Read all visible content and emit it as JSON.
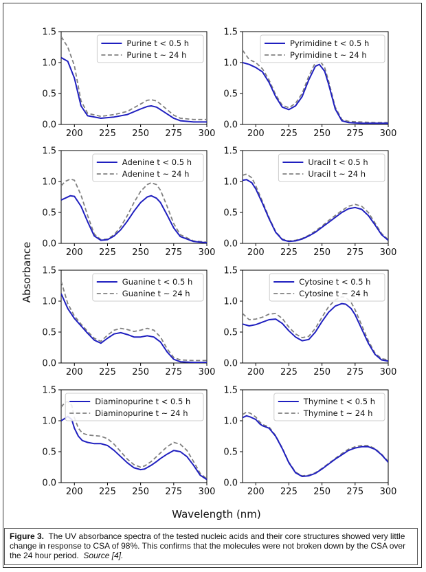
{
  "figure": {
    "ylabel": "Absorbance",
    "xlabel": "Wavelength (nm)",
    "caption": {
      "label": "Figure 3.",
      "text": "The UV absorbance spectra of the tested nucleic acids and their core structures showed very little change in response to CSA of 98%.  This confirms that the molecules were not broken down by the CSA over the 24 hour period.",
      "source": "Source [4]."
    }
  },
  "colors": {
    "short": "#1f1fbf",
    "long": "#808080"
  },
  "chart_data": [
    {
      "type": "line",
      "xlim": [
        190,
        300
      ],
      "ylim": [
        0,
        1.5
      ],
      "xticks": [
        "200",
        "225",
        "250",
        "275",
        "300"
      ],
      "yticks": [
        "0.0",
        "0.5",
        "1.0",
        "1.5"
      ],
      "legend_position": "top-right",
      "series": [
        {
          "name": "Purine t < 0.5 h",
          "style": "solid",
          "x": [
            190,
            195,
            200,
            205,
            210,
            220,
            230,
            240,
            250,
            255,
            258,
            262,
            265,
            270,
            275,
            280,
            290,
            300
          ],
          "y": [
            1.08,
            1.02,
            0.75,
            0.3,
            0.14,
            0.1,
            0.12,
            0.16,
            0.25,
            0.29,
            0.3,
            0.28,
            0.24,
            0.17,
            0.1,
            0.06,
            0.04,
            0.04
          ]
        },
        {
          "name": "Purine t ~ 24 h",
          "style": "dashed",
          "x": [
            190,
            195,
            200,
            205,
            210,
            220,
            230,
            240,
            250,
            255,
            258,
            262,
            265,
            270,
            275,
            280,
            290,
            300
          ],
          "y": [
            1.42,
            1.25,
            0.95,
            0.38,
            0.18,
            0.13,
            0.16,
            0.21,
            0.33,
            0.39,
            0.4,
            0.38,
            0.33,
            0.24,
            0.15,
            0.1,
            0.08,
            0.08
          ]
        }
      ]
    },
    {
      "type": "line",
      "xlim": [
        190,
        300
      ],
      "ylim": [
        0,
        1.5
      ],
      "xticks": [
        "200",
        "225",
        "250",
        "275",
        "300"
      ],
      "yticks": [
        "0.0",
        "0.5",
        "1.0",
        "1.5"
      ],
      "legend_position": "top-right",
      "series": [
        {
          "name": "Pyrimidine t < 0.5 h",
          "style": "solid",
          "x": [
            190,
            195,
            200,
            205,
            210,
            215,
            220,
            225,
            230,
            235,
            240,
            245,
            248,
            252,
            255,
            260,
            265,
            270,
            280,
            290,
            300
          ],
          "y": [
            1.0,
            0.97,
            0.92,
            0.85,
            0.68,
            0.45,
            0.28,
            0.24,
            0.3,
            0.45,
            0.72,
            0.94,
            0.97,
            0.86,
            0.65,
            0.25,
            0.06,
            0.03,
            0.02,
            0.02,
            0.02
          ]
        },
        {
          "name": "Pyrimidine t ~ 24 h",
          "style": "dashed",
          "x": [
            190,
            195,
            200,
            205,
            210,
            215,
            220,
            225,
            230,
            235,
            240,
            245,
            248,
            252,
            255,
            260,
            265,
            270,
            280,
            290,
            300
          ],
          "y": [
            1.2,
            1.05,
            1.0,
            0.9,
            0.72,
            0.48,
            0.31,
            0.27,
            0.34,
            0.5,
            0.78,
            1.0,
            1.04,
            0.92,
            0.7,
            0.28,
            0.08,
            0.05,
            0.04,
            0.03,
            0.03
          ]
        }
      ]
    },
    {
      "type": "line",
      "xlim": [
        190,
        300
      ],
      "ylim": [
        0,
        1.5
      ],
      "xticks": [
        "200",
        "225",
        "250",
        "275",
        "300"
      ],
      "yticks": [
        "0.0",
        "0.5",
        "1.0",
        "1.5"
      ],
      "legend_position": "top-right",
      "series": [
        {
          "name": "Adenine t < 0.5 h",
          "style": "solid",
          "x": [
            190,
            193,
            197,
            200,
            205,
            210,
            215,
            220,
            225,
            230,
            235,
            240,
            245,
            250,
            255,
            258,
            262,
            265,
            270,
            275,
            280,
            290,
            300
          ],
          "y": [
            0.7,
            0.73,
            0.77,
            0.76,
            0.6,
            0.35,
            0.12,
            0.05,
            0.06,
            0.12,
            0.22,
            0.36,
            0.52,
            0.66,
            0.75,
            0.77,
            0.73,
            0.66,
            0.46,
            0.25,
            0.11,
            0.03,
            0.01
          ]
        },
        {
          "name": "Adenine t ~ 24 h",
          "style": "dashed",
          "x": [
            190,
            193,
            197,
            200,
            205,
            210,
            215,
            220,
            225,
            230,
            235,
            240,
            245,
            250,
            255,
            258,
            262,
            265,
            270,
            275,
            280,
            290,
            300
          ],
          "y": [
            0.93,
            1.0,
            1.04,
            1.02,
            0.78,
            0.45,
            0.15,
            0.06,
            0.07,
            0.14,
            0.27,
            0.45,
            0.66,
            0.84,
            0.95,
            0.98,
            0.95,
            0.86,
            0.6,
            0.32,
            0.14,
            0.04,
            0.02
          ]
        }
      ]
    },
    {
      "type": "line",
      "xlim": [
        190,
        300
      ],
      "ylim": [
        0,
        1.5
      ],
      "xticks": [
        "200",
        "225",
        "250",
        "275",
        "300"
      ],
      "yticks": [
        "0.0",
        "0.5",
        "1.0",
        "1.5"
      ],
      "legend_position": "top-right",
      "series": [
        {
          "name": "Uracil t < 0.5 h",
          "style": "solid",
          "x": [
            190,
            193,
            197,
            200,
            205,
            210,
            215,
            220,
            225,
            230,
            235,
            240,
            245,
            250,
            255,
            260,
            265,
            270,
            275,
            280,
            285,
            290,
            295,
            300
          ],
          "y": [
            1.02,
            1.03,
            0.98,
            0.88,
            0.65,
            0.4,
            0.18,
            0.06,
            0.03,
            0.04,
            0.07,
            0.12,
            0.18,
            0.26,
            0.34,
            0.42,
            0.5,
            0.56,
            0.58,
            0.55,
            0.45,
            0.3,
            0.14,
            0.05
          ]
        },
        {
          "name": "Uracil t ~ 24 h",
          "style": "dashed",
          "x": [
            190,
            193,
            197,
            200,
            205,
            210,
            215,
            220,
            225,
            230,
            235,
            240,
            245,
            250,
            255,
            260,
            265,
            270,
            275,
            280,
            285,
            290,
            295,
            300
          ],
          "y": [
            1.1,
            1.12,
            1.06,
            0.93,
            0.68,
            0.42,
            0.19,
            0.07,
            0.04,
            0.05,
            0.08,
            0.13,
            0.2,
            0.28,
            0.37,
            0.45,
            0.53,
            0.6,
            0.63,
            0.6,
            0.5,
            0.33,
            0.16,
            0.06
          ]
        }
      ]
    },
    {
      "type": "line",
      "xlim": [
        190,
        300
      ],
      "ylim": [
        0,
        1.5
      ],
      "xticks": [
        "200",
        "225",
        "250",
        "275",
        "300"
      ],
      "yticks": [
        "0.0",
        "0.5",
        "1.0",
        "1.5"
      ],
      "legend_position": "top-right",
      "series": [
        {
          "name": "Guanine t < 0.5 h",
          "style": "solid",
          "x": [
            190,
            195,
            200,
            205,
            210,
            215,
            220,
            225,
            230,
            235,
            240,
            245,
            250,
            255,
            260,
            265,
            270,
            275,
            280,
            290,
            300
          ],
          "y": [
            1.12,
            0.88,
            0.72,
            0.6,
            0.48,
            0.37,
            0.32,
            0.4,
            0.47,
            0.49,
            0.46,
            0.42,
            0.42,
            0.44,
            0.42,
            0.34,
            0.18,
            0.06,
            0.02,
            0.01,
            0.01
          ]
        },
        {
          "name": "Guanine t ~ 24 h",
          "style": "dashed",
          "x": [
            190,
            195,
            200,
            205,
            210,
            215,
            220,
            225,
            230,
            235,
            240,
            245,
            250,
            255,
            260,
            265,
            270,
            275,
            280,
            290,
            300
          ],
          "y": [
            1.32,
            0.96,
            0.76,
            0.63,
            0.51,
            0.4,
            0.35,
            0.45,
            0.53,
            0.56,
            0.54,
            0.51,
            0.53,
            0.56,
            0.53,
            0.42,
            0.23,
            0.09,
            0.05,
            0.04,
            0.04
          ]
        }
      ]
    },
    {
      "type": "line",
      "xlim": [
        190,
        300
      ],
      "ylim": [
        0,
        1.5
      ],
      "xticks": [
        "200",
        "225",
        "250",
        "275",
        "300"
      ],
      "yticks": [
        "0.0",
        "0.5",
        "1.0",
        "1.5"
      ],
      "legend_position": "top-right",
      "series": [
        {
          "name": "Cytosine t < 0.5 h",
          "style": "solid",
          "x": [
            190,
            195,
            200,
            205,
            210,
            215,
            220,
            225,
            230,
            235,
            240,
            245,
            250,
            255,
            260,
            265,
            268,
            272,
            275,
            280,
            285,
            290,
            295,
            300
          ],
          "y": [
            0.63,
            0.6,
            0.62,
            0.66,
            0.7,
            0.71,
            0.64,
            0.52,
            0.42,
            0.36,
            0.38,
            0.5,
            0.67,
            0.82,
            0.92,
            0.96,
            0.95,
            0.88,
            0.78,
            0.55,
            0.32,
            0.14,
            0.05,
            0.03
          ]
        },
        {
          "name": "Cytosine t ~ 24 h",
          "style": "dashed",
          "x": [
            190,
            195,
            200,
            205,
            210,
            215,
            220,
            225,
            230,
            235,
            240,
            245,
            250,
            255,
            260,
            265,
            268,
            272,
            275,
            280,
            285,
            290,
            295,
            300
          ],
          "y": [
            0.8,
            0.7,
            0.71,
            0.74,
            0.79,
            0.8,
            0.72,
            0.58,
            0.47,
            0.41,
            0.43,
            0.56,
            0.74,
            0.91,
            1.02,
            1.07,
            1.06,
            0.98,
            0.86,
            0.61,
            0.36,
            0.16,
            0.07,
            0.05
          ]
        }
      ]
    },
    {
      "type": "line",
      "xlim": [
        190,
        300
      ],
      "ylim": [
        0,
        1.5
      ],
      "xticks": [
        "200",
        "225",
        "250",
        "275",
        "300"
      ],
      "yticks": [
        "0.0",
        "0.5",
        "1.0",
        "1.5"
      ],
      "legend_position": "top-right",
      "series": [
        {
          "name": "Diaminopurine t < 0.5 h",
          "style": "solid",
          "x": [
            190,
            193,
            195,
            198,
            200,
            203,
            206,
            210,
            215,
            220,
            225,
            230,
            235,
            240,
            245,
            250,
            253,
            258,
            262,
            265,
            270,
            275,
            280,
            285,
            290,
            295,
            300
          ],
          "y": [
            1.0,
            1.04,
            1.07,
            1.02,
            0.88,
            0.75,
            0.68,
            0.65,
            0.63,
            0.63,
            0.6,
            0.52,
            0.42,
            0.32,
            0.24,
            0.21,
            0.22,
            0.28,
            0.34,
            0.39,
            0.46,
            0.52,
            0.5,
            0.42,
            0.28,
            0.12,
            0.05
          ]
        },
        {
          "name": "Diaminopurine t ~ 24 h",
          "style": "dashed",
          "x": [
            190,
            193,
            195,
            198,
            200,
            203,
            206,
            210,
            215,
            220,
            225,
            230,
            235,
            240,
            245,
            250,
            253,
            258,
            262,
            265,
            270,
            275,
            280,
            285,
            290,
            295,
            300
          ],
          "y": [
            1.22,
            1.3,
            1.31,
            1.25,
            1.05,
            0.88,
            0.8,
            0.77,
            0.76,
            0.75,
            0.71,
            0.62,
            0.5,
            0.38,
            0.29,
            0.25,
            0.27,
            0.34,
            0.42,
            0.48,
            0.58,
            0.65,
            0.62,
            0.52,
            0.34,
            0.15,
            0.06
          ]
        }
      ]
    },
    {
      "type": "line",
      "xlim": [
        190,
        300
      ],
      "ylim": [
        0,
        1.5
      ],
      "xticks": [
        "200",
        "225",
        "250",
        "275",
        "300"
      ],
      "yticks": [
        "0.0",
        "0.5",
        "1.0",
        "1.5"
      ],
      "legend_position": "top-right",
      "series": [
        {
          "name": "Thymine t < 0.5 h",
          "style": "solid",
          "x": [
            190,
            193,
            196,
            200,
            203,
            205,
            210,
            215,
            220,
            225,
            230,
            235,
            240,
            245,
            250,
            255,
            260,
            265,
            270,
            275,
            280,
            285,
            290,
            295,
            300
          ],
          "y": [
            1.05,
            1.08,
            1.06,
            1.02,
            0.95,
            0.92,
            0.88,
            0.75,
            0.55,
            0.32,
            0.16,
            0.1,
            0.11,
            0.15,
            0.22,
            0.3,
            0.38,
            0.45,
            0.52,
            0.56,
            0.58,
            0.58,
            0.54,
            0.45,
            0.33
          ]
        },
        {
          "name": "Thymine t ~ 24 h",
          "style": "dashed",
          "x": [
            190,
            193,
            196,
            200,
            203,
            205,
            210,
            215,
            220,
            225,
            230,
            235,
            240,
            245,
            250,
            255,
            260,
            265,
            270,
            275,
            280,
            285,
            290,
            295,
            300
          ],
          "y": [
            1.1,
            1.14,
            1.12,
            1.06,
            0.98,
            0.94,
            0.9,
            0.76,
            0.56,
            0.33,
            0.17,
            0.11,
            0.12,
            0.16,
            0.23,
            0.31,
            0.39,
            0.47,
            0.54,
            0.58,
            0.6,
            0.6,
            0.55,
            0.46,
            0.34
          ]
        }
      ]
    }
  ]
}
